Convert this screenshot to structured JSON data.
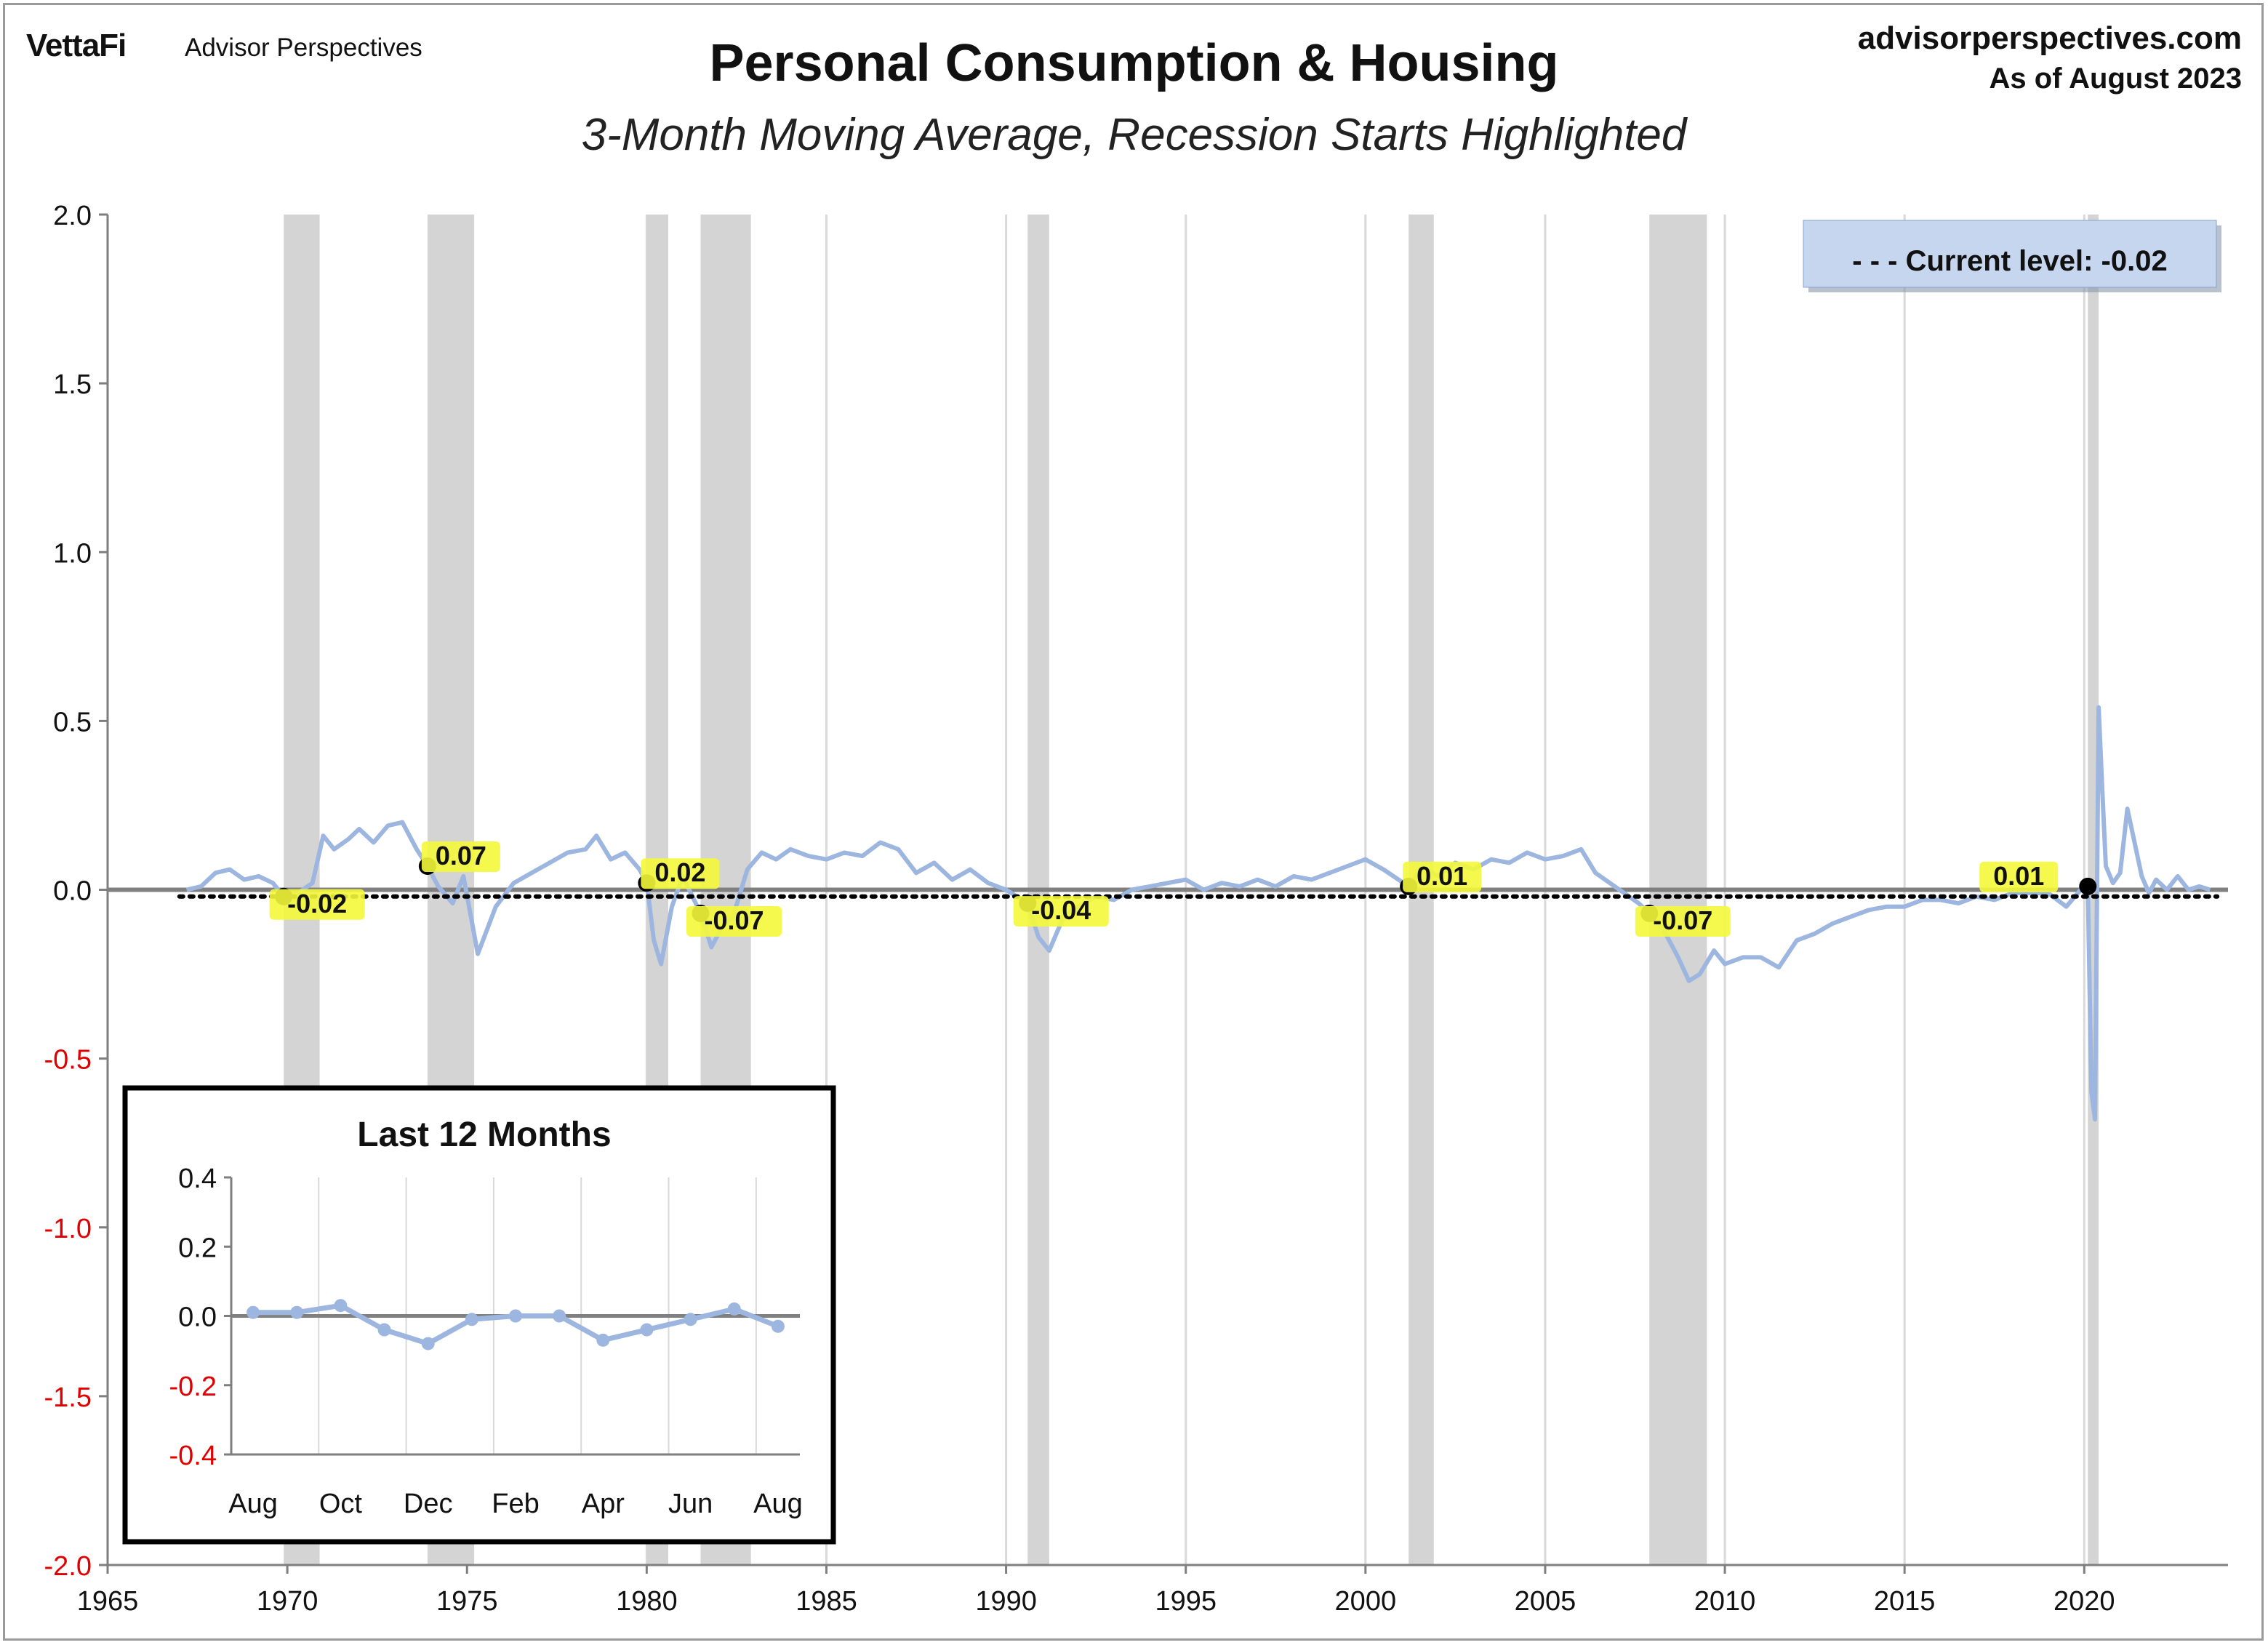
{
  "header": {
    "logo": "VettaFi",
    "logo_sub": "Advisor Perspectives",
    "site": "advisorperspectives.com",
    "as_of": "As of August 2023"
  },
  "legend": {
    "label": "- - -  Current level:  -0.02"
  },
  "colors": {
    "series": "#9db6e0",
    "recession": "#d4d4d4",
    "label_bg": "#f4f83a",
    "negative_tick": "#e00000",
    "legend_bg": "#c7d6ef"
  },
  "chart_data": [
    {
      "type": "line",
      "title": "Personal Consumption & Housing",
      "subtitle": "3-Month Moving Average, Recession Starts Highlighted",
      "xlim": [
        1965,
        2024
      ],
      "ylim": [
        -2.0,
        2.0
      ],
      "x_ticks": [
        1965,
        1970,
        1975,
        1980,
        1985,
        1990,
        1995,
        2000,
        2005,
        2010,
        2015,
        2020
      ],
      "y_ticks": [
        "2.0",
        "1.5",
        "1.0",
        "0.5",
        "0.0",
        "-0.5",
        "-1.0",
        "-1.5",
        "-2.0"
      ],
      "grid": "vertical",
      "current_level": -0.02,
      "recessions": [
        [
          1969.9,
          1970.9
        ],
        [
          1973.9,
          1975.2
        ],
        [
          1980.0,
          1980.6
        ],
        [
          1981.5,
          1982.9
        ],
        [
          1990.6,
          1991.2
        ],
        [
          2001.2,
          2001.9
        ],
        [
          2007.9,
          2009.5
        ],
        [
          2020.1,
          2020.4
        ]
      ],
      "recession_start_markers": [
        {
          "x": 1969.9,
          "y": -0.02,
          "label": "-0.02"
        },
        {
          "x": 1973.9,
          "y": 0.07,
          "label": "0.07"
        },
        {
          "x": 1980.0,
          "y": 0.02,
          "label": "0.02"
        },
        {
          "x": 1981.5,
          "y": -0.07,
          "label": "-0.07"
        },
        {
          "x": 1990.6,
          "y": -0.04,
          "label": "-0.04"
        },
        {
          "x": 2001.2,
          "y": 0.01,
          "label": "0.01"
        },
        {
          "x": 2007.9,
          "y": -0.07,
          "label": "-0.07"
        },
        {
          "x": 2020.1,
          "y": 0.01,
          "label": "0.01"
        }
      ],
      "series": [
        {
          "x": [
            1967.2,
            1967.6,
            1968.0,
            1968.4,
            1968.8,
            1969.2,
            1969.6,
            1969.9,
            1970.3,
            1970.7,
            1971.0,
            1971.3,
            1971.7,
            1972.0,
            1972.4,
            1972.8,
            1973.2,
            1973.6,
            1973.9,
            1974.2,
            1974.6,
            1974.9,
            1975.3,
            1975.8,
            1976.3,
            1976.8,
            1977.3,
            1977.8,
            1978.3,
            1978.6,
            1979.0,
            1979.4,
            1979.8,
            1980.0,
            1980.2,
            1980.4,
            1980.7,
            1981.0,
            1981.5,
            1981.8,
            1982.1,
            1982.4,
            1982.8,
            1983.2,
            1983.6,
            1984.0,
            1984.5,
            1985.0,
            1985.5,
            1986.0,
            1986.5,
            1987.0,
            1987.5,
            1988.0,
            1988.5,
            1989.0,
            1989.5,
            1990.0,
            1990.6,
            1990.9,
            1991.2,
            1991.6,
            1992.0,
            1992.5,
            1993.0,
            1993.5,
            1994.0,
            1994.5,
            1995.0,
            1995.5,
            1996.0,
            1996.5,
            1997.0,
            1997.5,
            1998.0,
            1998.5,
            1999.0,
            1999.5,
            2000.0,
            2000.5,
            2001.2,
            2001.6,
            2002.0,
            2002.5,
            2003.0,
            2003.5,
            2004.0,
            2004.5,
            2005.0,
            2005.5,
            2006.0,
            2006.4,
            2006.8,
            2007.2,
            2007.6,
            2007.9,
            2008.3,
            2008.7,
            2009.0,
            2009.3,
            2009.7,
            2010.0,
            2010.5,
            2011.0,
            2011.5,
            2012.0,
            2012.5,
            2013.0,
            2013.5,
            2014.0,
            2014.5,
            2015.0,
            2015.5,
            2016.0,
            2016.5,
            2017.0,
            2017.5,
            2018.0,
            2018.5,
            2019.0,
            2019.5,
            2019.9,
            2020.1,
            2020.2,
            2020.3,
            2020.4,
            2020.5,
            2020.6,
            2020.8,
            2021.0,
            2021.2,
            2021.4,
            2021.6,
            2021.8,
            2022.0,
            2022.3,
            2022.6,
            2022.9,
            2023.2,
            2023.5
          ],
          "values": [
            0.0,
            0.01,
            0.05,
            0.06,
            0.03,
            0.04,
            0.02,
            -0.02,
            -0.01,
            0.02,
            0.16,
            0.12,
            0.15,
            0.18,
            0.14,
            0.19,
            0.2,
            0.12,
            0.07,
            0.01,
            -0.04,
            0.04,
            -0.19,
            -0.05,
            0.02,
            0.05,
            0.08,
            0.11,
            0.12,
            0.16,
            0.09,
            0.11,
            0.06,
            0.02,
            -0.15,
            -0.22,
            -0.05,
            0.04,
            -0.07,
            -0.17,
            -0.11,
            -0.08,
            0.06,
            0.11,
            0.09,
            0.12,
            0.1,
            0.09,
            0.11,
            0.1,
            0.14,
            0.12,
            0.05,
            0.08,
            0.03,
            0.06,
            0.02,
            0.0,
            -0.04,
            -0.14,
            -0.18,
            -0.08,
            -0.05,
            -0.02,
            -0.03,
            0.0,
            0.01,
            0.02,
            0.03,
            0.0,
            0.02,
            0.01,
            0.03,
            0.01,
            0.04,
            0.03,
            0.05,
            0.07,
            0.09,
            0.06,
            0.01,
            0.07,
            0.04,
            0.08,
            0.06,
            0.09,
            0.08,
            0.11,
            0.09,
            0.1,
            0.12,
            0.05,
            0.02,
            -0.01,
            -0.04,
            -0.07,
            -0.12,
            -0.2,
            -0.27,
            -0.25,
            -0.18,
            -0.22,
            -0.2,
            -0.2,
            -0.23,
            -0.15,
            -0.13,
            -0.1,
            -0.08,
            -0.06,
            -0.05,
            -0.05,
            -0.03,
            -0.03,
            -0.04,
            -0.02,
            -0.03,
            -0.01,
            -0.01,
            -0.01,
            -0.05,
            0.0,
            0.01,
            -0.6,
            -0.68,
            0.54,
            0.3,
            0.07,
            0.02,
            0.05,
            0.24,
            0.14,
            0.04,
            -0.01,
            0.03,
            0.0,
            0.04,
            0.0,
            0.01,
            0.0
          ]
        }
      ]
    },
    {
      "type": "line",
      "title": "Last 12 Months",
      "categories": [
        "Aug",
        "Oct",
        "Dec",
        "Feb",
        "Apr",
        "Jun",
        "Aug"
      ],
      "ylim": [
        -0.4,
        0.4
      ],
      "y_ticks": [
        "0.4",
        "0.2",
        "0.0",
        "-0.2",
        "-0.4"
      ],
      "series": [
        {
          "x": [
            0,
            1,
            2,
            3,
            4,
            5,
            6,
            7,
            8,
            9,
            10,
            11,
            12
          ],
          "values": [
            0.01,
            0.01,
            0.03,
            -0.04,
            -0.08,
            -0.01,
            0.0,
            0.0,
            -0.07,
            -0.04,
            -0.01,
            0.02,
            -0.03
          ]
        }
      ]
    }
  ]
}
